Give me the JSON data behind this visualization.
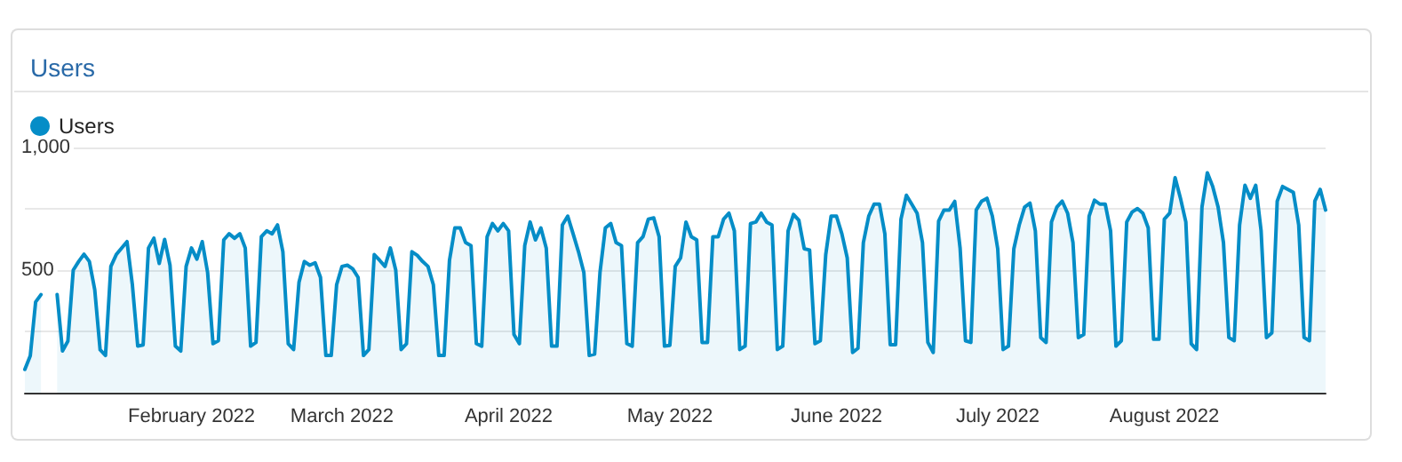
{
  "chart_data": {
    "type": "area",
    "title": "Users",
    "x": [
      "2022-01-01",
      "2022-01-02",
      "2022-01-03",
      "2022-01-04",
      "2022-01-05",
      "2022-01-06",
      "2022-01-07",
      "2022-01-08",
      "2022-01-09",
      "2022-01-10",
      "2022-01-11",
      "2022-01-12",
      "2022-01-13",
      "2022-01-14",
      "2022-01-15",
      "2022-01-16",
      "2022-01-17",
      "2022-01-18",
      "2022-01-19",
      "2022-01-20",
      "2022-01-21",
      "2022-01-22",
      "2022-01-23",
      "2022-01-24",
      "2022-01-25",
      "2022-01-26",
      "2022-01-27",
      "2022-01-28",
      "2022-01-29",
      "2022-01-30",
      "2022-01-31",
      "2022-02-01",
      "2022-02-02",
      "2022-02-03",
      "2022-02-04",
      "2022-02-05",
      "2022-02-06",
      "2022-02-07",
      "2022-02-08",
      "2022-02-09",
      "2022-02-10",
      "2022-02-11",
      "2022-02-12",
      "2022-02-13",
      "2022-02-14",
      "2022-02-15",
      "2022-02-16",
      "2022-02-17",
      "2022-02-18",
      "2022-02-19",
      "2022-02-20",
      "2022-02-21",
      "2022-02-22",
      "2022-02-23",
      "2022-02-24",
      "2022-02-25",
      "2022-02-26",
      "2022-02-27",
      "2022-02-28",
      "2022-03-01",
      "2022-03-02",
      "2022-03-03",
      "2022-03-04",
      "2022-03-05",
      "2022-03-06",
      "2022-03-07",
      "2022-03-08",
      "2022-03-09",
      "2022-03-10",
      "2022-03-11",
      "2022-03-12",
      "2022-03-13",
      "2022-03-14",
      "2022-03-15",
      "2022-03-16",
      "2022-03-17",
      "2022-03-18",
      "2022-03-19",
      "2022-03-20",
      "2022-03-21",
      "2022-03-22",
      "2022-03-23",
      "2022-03-24",
      "2022-03-25",
      "2022-03-26",
      "2022-03-27",
      "2022-03-28",
      "2022-03-29",
      "2022-03-30",
      "2022-03-31",
      "2022-04-01",
      "2022-04-02",
      "2022-04-03",
      "2022-04-04",
      "2022-04-05",
      "2022-04-06",
      "2022-04-07",
      "2022-04-08",
      "2022-04-09",
      "2022-04-10",
      "2022-04-11",
      "2022-04-12",
      "2022-04-13",
      "2022-04-14",
      "2022-04-15",
      "2022-04-16",
      "2022-04-17",
      "2022-04-18",
      "2022-04-19",
      "2022-04-20",
      "2022-04-21",
      "2022-04-22",
      "2022-04-23",
      "2022-04-24",
      "2022-04-25",
      "2022-04-26",
      "2022-04-27",
      "2022-04-28",
      "2022-04-29",
      "2022-04-30",
      "2022-05-01",
      "2022-05-02",
      "2022-05-03",
      "2022-05-04",
      "2022-05-05",
      "2022-05-06",
      "2022-05-07",
      "2022-05-08",
      "2022-05-09",
      "2022-05-10",
      "2022-05-11",
      "2022-05-12",
      "2022-05-13",
      "2022-05-14",
      "2022-05-15",
      "2022-05-16",
      "2022-05-17",
      "2022-05-18",
      "2022-05-19",
      "2022-05-20",
      "2022-05-21",
      "2022-05-22",
      "2022-05-23",
      "2022-05-24",
      "2022-05-25",
      "2022-05-26",
      "2022-05-27",
      "2022-05-28",
      "2022-05-29",
      "2022-05-30",
      "2022-05-31",
      "2022-06-01",
      "2022-06-02",
      "2022-06-03",
      "2022-06-04",
      "2022-06-05",
      "2022-06-06",
      "2022-06-07",
      "2022-06-08",
      "2022-06-09",
      "2022-06-10",
      "2022-06-11",
      "2022-06-12",
      "2022-06-13",
      "2022-06-14",
      "2022-06-15",
      "2022-06-16",
      "2022-06-17",
      "2022-06-18",
      "2022-06-19",
      "2022-06-20",
      "2022-06-21",
      "2022-06-22",
      "2022-06-23",
      "2022-06-24",
      "2022-06-25",
      "2022-06-26",
      "2022-06-27",
      "2022-06-28",
      "2022-06-29",
      "2022-06-30",
      "2022-07-01",
      "2022-07-02",
      "2022-07-03",
      "2022-07-04",
      "2022-07-05",
      "2022-07-06",
      "2022-07-07",
      "2022-07-08",
      "2022-07-09",
      "2022-07-10",
      "2022-07-11",
      "2022-07-12",
      "2022-07-13",
      "2022-07-14",
      "2022-07-15",
      "2022-07-16",
      "2022-07-17",
      "2022-07-18",
      "2022-07-19",
      "2022-07-20",
      "2022-07-21",
      "2022-07-22",
      "2022-07-23",
      "2022-07-24",
      "2022-07-25",
      "2022-07-26",
      "2022-07-27",
      "2022-07-28",
      "2022-07-29",
      "2022-07-30",
      "2022-07-31",
      "2022-08-01",
      "2022-08-02",
      "2022-08-03",
      "2022-08-04",
      "2022-08-05",
      "2022-08-06",
      "2022-08-07",
      "2022-08-08",
      "2022-08-09",
      "2022-08-10",
      "2022-08-11",
      "2022-08-12",
      "2022-08-13",
      "2022-08-14",
      "2022-08-15",
      "2022-08-16",
      "2022-08-17",
      "2022-08-18",
      "2022-08-19",
      "2022-08-20",
      "2022-08-21",
      "2022-08-22",
      "2022-08-23",
      "2022-08-24",
      "2022-08-25",
      "2022-08-26",
      "2022-08-27",
      "2022-08-28",
      "2022-08-29",
      "2022-08-30",
      "2022-08-31"
    ],
    "series": [
      {
        "name": "Users",
        "color": "#058dc7",
        "values": [
          95,
          150,
          370,
          400,
          null,
          null,
          400,
          170,
          210,
          500,
          535,
          565,
          535,
          420,
          175,
          152,
          515,
          563,
          590,
          616,
          440,
          190,
          195,
          590,
          630,
          527,
          625,
          520,
          190,
          170,
          515,
          590,
          545,
          616,
          490,
          200,
          212,
          623,
          648,
          630,
          648,
          590,
          190,
          205,
          636,
          660,
          648,
          684,
          575,
          200,
          176,
          450,
          535,
          520,
          530,
          470,
          152,
          152,
          440,
          515,
          520,
          505,
          470,
          152,
          176,
          563,
          540,
          515,
          590,
          500,
          176,
          200,
          575,
          560,
          535,
          515,
          440,
          152,
          152,
          540,
          672,
          672,
          612,
          600,
          200,
          190,
          636,
          690,
          660,
          690,
          660,
          237,
          200,
          600,
          696,
          623,
          672,
          590,
          190,
          190,
          684,
          720,
          648,
          575,
          490,
          152,
          157,
          490,
          672,
          690,
          612,
          600,
          200,
          190,
          612,
          636,
          708,
          713,
          636,
          190,
          193,
          515,
          550,
          696,
          636,
          623,
          205,
          205,
          636,
          636,
          708,
          732,
          660,
          176,
          190,
          690,
          696,
          732,
          696,
          684,
          176,
          190,
          660,
          727,
          703,
          587,
          582,
          200,
          212,
          563,
          720,
          720,
          648,
          550,
          164,
          181,
          612,
          720,
          769,
          769,
          648,
          196,
          196,
          708,
          805,
          769,
          732,
          612,
          205,
          164,
          700,
          745,
          745,
          780,
          590,
          212,
          205,
          745,
          781,
          793,
          720,
          587,
          176,
          190,
          587,
          684,
          757,
          773,
          660,
          225,
          205,
          696,
          757,
          781,
          732,
          612,
          225,
          237,
          720,
          785,
          769,
          769,
          660,
          190,
          212,
          696,
          737,
          751,
          732,
          672,
          218,
          218,
          708,
          732,
          877,
          793,
          696,
          200,
          176,
          757,
          897,
          841,
          757,
          612,
          225,
          212,
          684,
          846,
          793,
          846,
          660,
          225,
          244,
          781,
          841,
          829,
          817,
          684,
          225,
          212,
          781,
          829,
          745
        ]
      }
    ],
    "xlim": [
      "2022-01-01",
      "2022-08-31"
    ],
    "xticks": [
      {
        "value": "2022-02-01",
        "label": "February 2022"
      },
      {
        "value": "2022-03-01",
        "label": "March 2022"
      },
      {
        "value": "2022-04-01",
        "label": "April 2022"
      },
      {
        "value": "2022-05-01",
        "label": "May 2022"
      },
      {
        "value": "2022-06-01",
        "label": "June 2022"
      },
      {
        "value": "2022-07-01",
        "label": "July 2022"
      },
      {
        "value": "2022-08-01",
        "label": "August 2022"
      }
    ],
    "ylim": [
      0,
      1000
    ],
    "yticks": [
      {
        "value": 0,
        "label": null
      },
      {
        "value": 250,
        "label": null
      },
      500,
      {
        "value": 750,
        "label": null
      },
      {
        "value": 1000,
        "label": "1,000"
      }
    ],
    "grid": "y",
    "legend": "top left",
    "marker": "none"
  }
}
